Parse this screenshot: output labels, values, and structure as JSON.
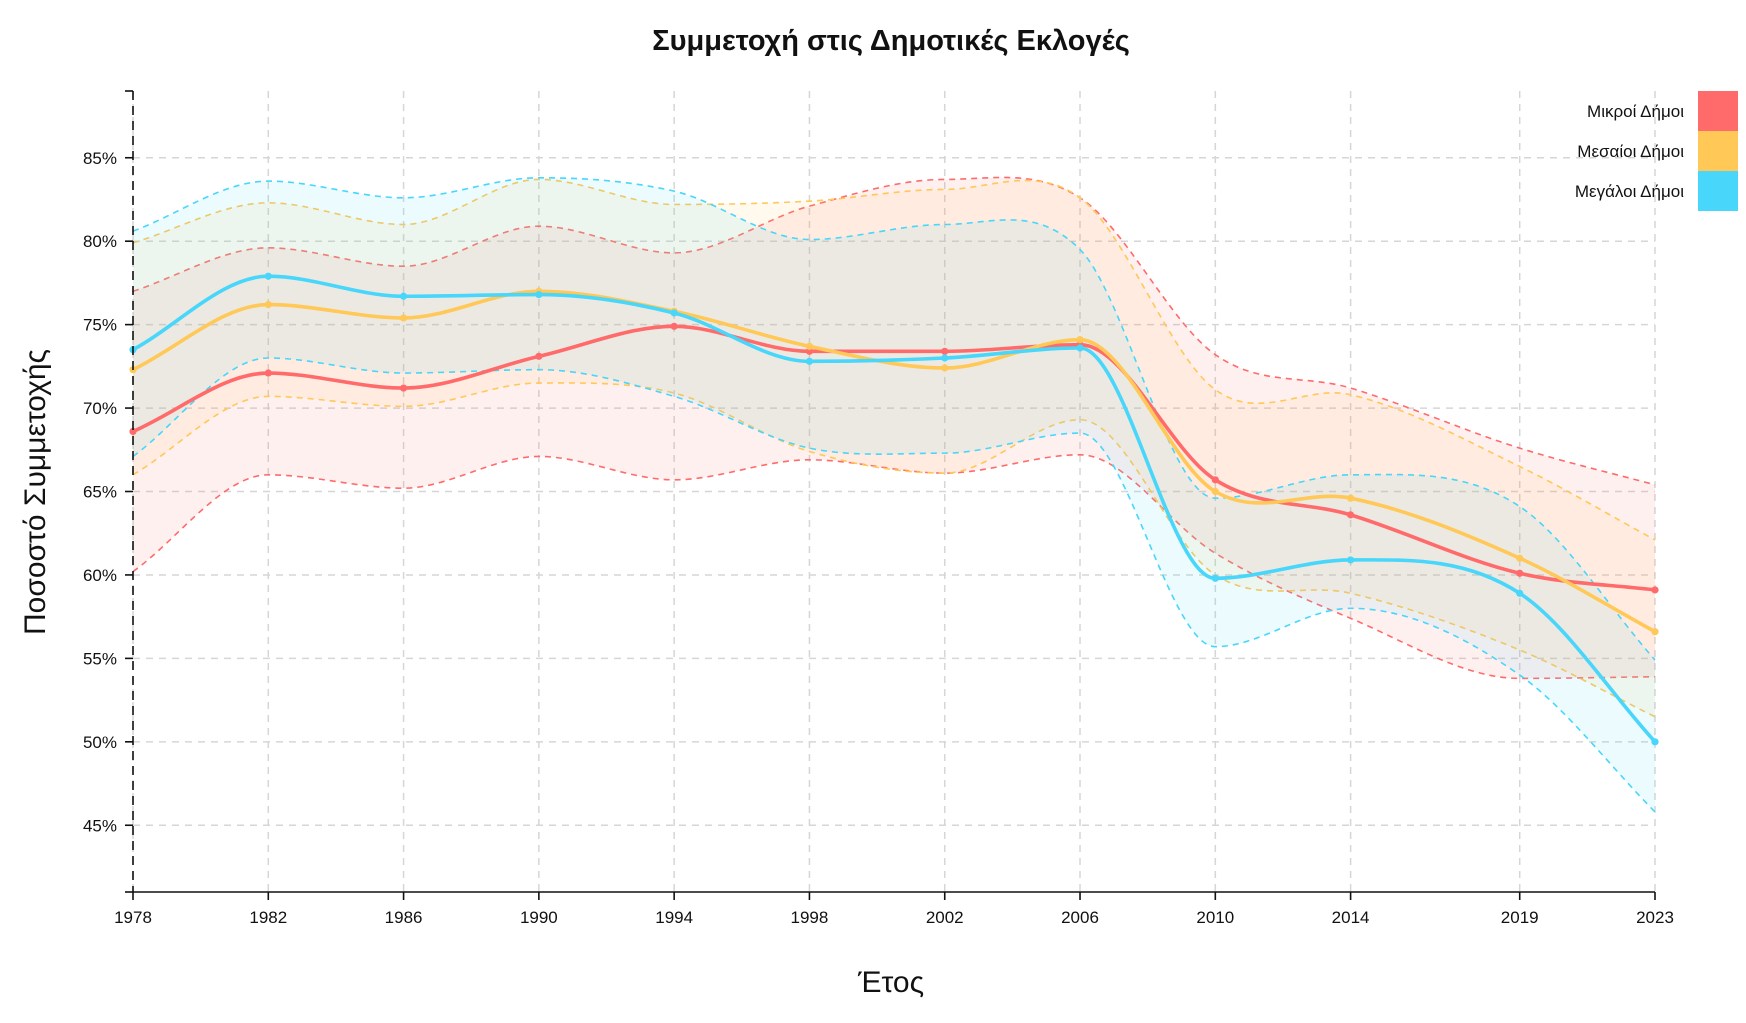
{
  "chart_data": {
    "type": "line",
    "title": "Συμμετοχή στις Δημοτικές Εκλογές",
    "xlabel": "Έτος",
    "ylabel": "Ποσοστό Συμμετοχής",
    "x": [
      1978,
      1982,
      1986,
      1990,
      1994,
      1998,
      2002,
      2006,
      2010,
      2014,
      2019,
      2023
    ],
    "x_tick_labels": [
      "1978",
      "1982",
      "1986",
      "1990",
      "1994",
      "1998",
      "2002",
      "2006",
      "2010",
      "2014",
      "2019",
      "2023"
    ],
    "xlim": [
      1978,
      2023
    ],
    "ylim": [
      41,
      89
    ],
    "y_ticks": [
      45,
      50,
      55,
      60,
      65,
      70,
      75,
      80,
      85
    ],
    "y_tick_labels": [
      "45%",
      "50%",
      "55%",
      "60%",
      "65%",
      "70%",
      "75%",
      "80%",
      "85%"
    ],
    "grid": true,
    "legend_position": "top-right",
    "series": [
      {
        "name": "Μικροί Δήμοι",
        "color": "#FF6B6B",
        "values": [
          68.6,
          72.1,
          71.2,
          73.1,
          74.9,
          73.4,
          73.4,
          73.8,
          65.7,
          63.6,
          60.1,
          59.1
        ],
        "upper": [
          77.0,
          79.6,
          78.5,
          80.9,
          79.3,
          82.1,
          83.7,
          82.6,
          73.2,
          71.2,
          67.6,
          65.4
        ],
        "lower": [
          60.2,
          66.0,
          65.2,
          67.1,
          65.7,
          66.9,
          66.1,
          67.2,
          61.3,
          57.4,
          53.8,
          53.9
        ]
      },
      {
        "name": "Μεσαίοι Δήμοι",
        "color": "#FFC857",
        "values": [
          72.3,
          76.2,
          75.4,
          77.0,
          75.8,
          73.7,
          72.4,
          74.1,
          65.0,
          64.6,
          61.0,
          56.6
        ],
        "upper": [
          79.9,
          82.3,
          81.0,
          83.7,
          82.2,
          82.4,
          83.1,
          82.6,
          71.1,
          70.8,
          66.5,
          62.1
        ],
        "lower": [
          66.0,
          70.7,
          70.1,
          71.5,
          70.9,
          67.4,
          66.1,
          69.3,
          60.0,
          58.9,
          55.5,
          51.5
        ]
      },
      {
        "name": "Μεγάλοι Δήμοι",
        "color": "#48D6FA",
        "values": [
          73.5,
          77.9,
          76.7,
          76.8,
          75.7,
          72.8,
          73.0,
          73.6,
          59.8,
          60.9,
          58.9,
          50.0
        ],
        "upper": [
          80.6,
          83.6,
          82.6,
          83.8,
          83.0,
          80.1,
          81.0,
          79.5,
          64.6,
          66.0,
          64.1,
          54.9
        ],
        "lower": [
          67.1,
          73.0,
          72.1,
          72.3,
          70.7,
          67.6,
          67.3,
          68.5,
          55.7,
          58.0,
          54.0,
          45.8
        ]
      }
    ]
  }
}
